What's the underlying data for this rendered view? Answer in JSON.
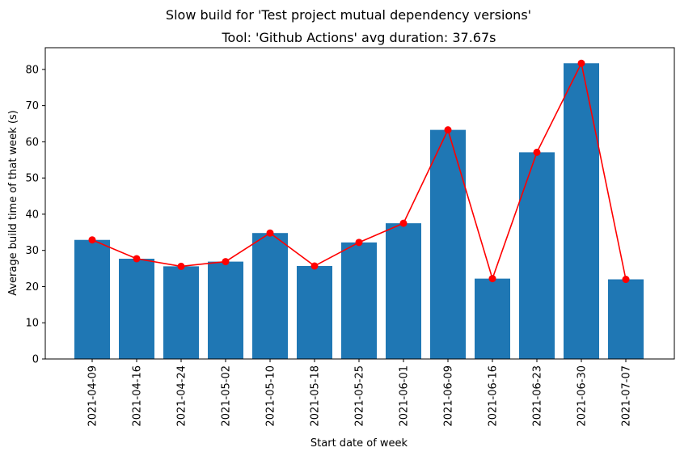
{
  "chart_data": {
    "type": "bar",
    "suptitle": "Slow build for 'Test project mutual dependency versions'",
    "title": "Tool: 'Github Actions' avg duration: 37.67s",
    "xlabel": "Start date of week",
    "ylabel": "Average build time of that week (s)",
    "categories": [
      "2021-04-09",
      "2021-04-16",
      "2021-04-24",
      "2021-05-02",
      "2021-05-10",
      "2021-05-18",
      "2021-05-25",
      "2021-06-01",
      "2021-06-09",
      "2021-06-16",
      "2021-06-23",
      "2021-06-30",
      "2021-07-07"
    ],
    "values": [
      32.9,
      27.7,
      25.6,
      26.9,
      34.8,
      25.7,
      32.2,
      37.5,
      63.3,
      22.2,
      57.1,
      81.7,
      22.0
    ],
    "line_values": [
      32.9,
      27.7,
      25.6,
      26.9,
      34.8,
      25.7,
      32.2,
      37.5,
      63.3,
      22.2,
      57.1,
      81.7,
      22.0
    ],
    "ylim": [
      0,
      86
    ],
    "yticks": [
      0,
      10,
      20,
      30,
      40,
      50,
      60,
      70,
      80
    ],
    "grid": false,
    "legend": "none",
    "colors": {
      "bar": "#1f77b4",
      "line": "#ff0000"
    }
  }
}
